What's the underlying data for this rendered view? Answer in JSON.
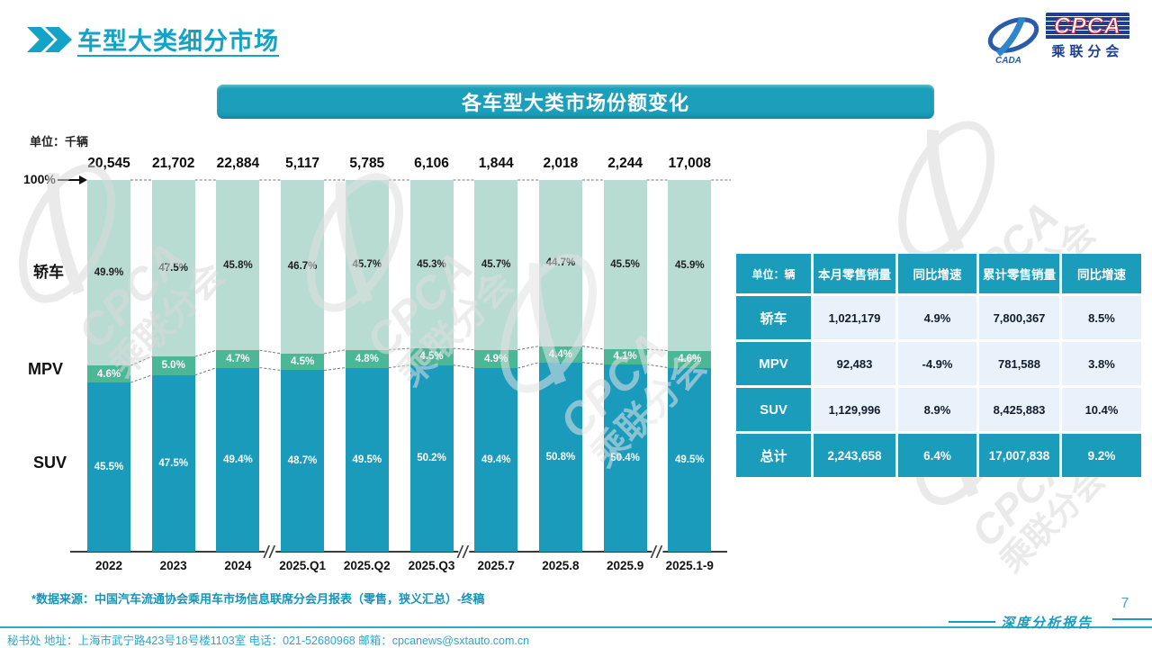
{
  "page": {
    "title": "车型大类细分市场",
    "page_number": "7",
    "report_label": "深度分析报告",
    "source_note": "*数据来源：中国汽车流通协会乘用车市场信息联席分会月报表（零售，狭义汇总）-终稿",
    "footer": "秘书处   地址：上海市武宁路423号18号楼1103室   电话：021-52680968   邮箱：cpcanews@sxtauto.com.cn"
  },
  "logo": {
    "cpca": "CPCA",
    "cada": "CADA",
    "subtitle": "乘联分会"
  },
  "banner": {
    "title": "各车型大类市场份额变化"
  },
  "icons": {
    "title_marker": "double-chevron-right-icon",
    "logo": "cpca-cada-logo",
    "watermark": "cpca-watermark"
  },
  "watermark_text": {
    "line1": "CPCA",
    "line2": "乘联分会"
  },
  "chart_data": {
    "type": "bar",
    "subtype": "100-percent-stacked-column",
    "title": "各车型大类市场份额变化",
    "unit_label": "单位：千辆",
    "axis_marker": "100%",
    "categories": [
      "2022",
      "2023",
      "2024",
      "2025.Q1",
      "2025.Q2",
      "2025.Q3",
      "2025.7",
      "2025.8",
      "2025.9",
      "2025.1-9"
    ],
    "totals": [
      "20,545",
      "21,702",
      "22,884",
      "5,117",
      "5,785",
      "6,106",
      "1,844",
      "2,018",
      "2,244",
      "17,008"
    ],
    "series": [
      {
        "name": "轿车",
        "values": [
          49.9,
          47.5,
          45.8,
          46.7,
          45.7,
          45.3,
          45.7,
          44.7,
          45.5,
          45.9
        ],
        "color": "#b9dcd2",
        "label_color": "#1f1f1f"
      },
      {
        "name": "MPV",
        "values": [
          4.6,
          5.0,
          4.7,
          4.5,
          4.8,
          4.5,
          4.9,
          4.4,
          4.1,
          4.6
        ],
        "color": "#4cb796",
        "label_color": "#ffffff"
      },
      {
        "name": "SUV",
        "values": [
          45.5,
          47.5,
          49.4,
          48.7,
          49.5,
          50.2,
          49.4,
          50.8,
          50.4,
          49.5
        ],
        "color": "#1b9bbb",
        "label_color": "#ffffff"
      }
    ],
    "breaks_after": [
      2,
      5,
      8
    ],
    "ylim": [
      0,
      100
    ],
    "grid": false,
    "legend_position": "left-axis-labels"
  },
  "table": {
    "header": [
      "单位：辆",
      "本月零售销量",
      "同比增速",
      "累计零售销量",
      "同比增速"
    ],
    "rows": [
      {
        "label": "轿车",
        "cells": [
          "1,021,179",
          "4.9%",
          "7,800,367",
          "8.5%"
        ],
        "total": false
      },
      {
        "label": "MPV",
        "cells": [
          "92,483",
          "-4.9%",
          "781,588",
          "3.8%"
        ],
        "total": false
      },
      {
        "label": "SUV",
        "cells": [
          "1,129,996",
          "8.9%",
          "8,425,883",
          "10.4%"
        ],
        "total": false
      },
      {
        "label": "总计",
        "cells": [
          "2,243,658",
          "6.4%",
          "17,007,838",
          "9.2%"
        ],
        "total": true
      }
    ]
  },
  "colors": {
    "accent": "#1b9cba",
    "banner": "#1b9fba",
    "sedan_segment": "#b9dcd2",
    "mpv_segment": "#4cb796",
    "suv_segment": "#1b9bbb",
    "table_cell_bg": "#e9f2fa",
    "footer_teal": "#29a7cd",
    "title_teal": "#12a3c6"
  }
}
